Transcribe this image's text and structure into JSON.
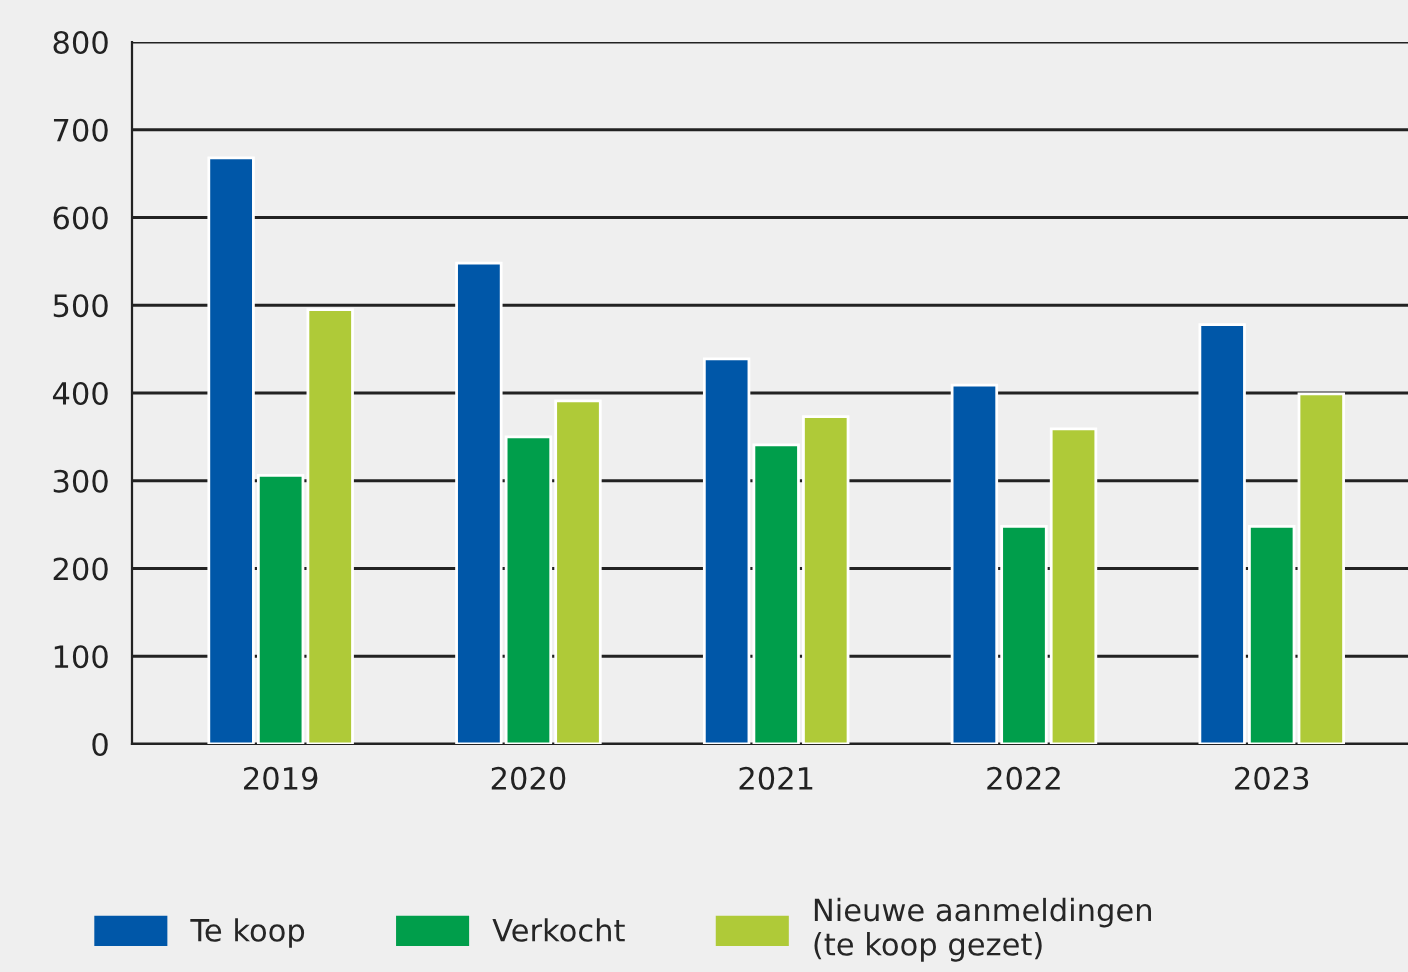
{
  "chart_data": {
    "type": "bar",
    "categories": [
      "2019",
      "2020",
      "2021",
      "2022",
      "2023"
    ],
    "series": [
      {
        "name": "Te koop",
        "color": "#0057a8",
        "values": [
          668,
          548,
          439,
          409,
          478
        ]
      },
      {
        "name": "Verkocht",
        "color": "#009e4b",
        "values": [
          306,
          350,
          341,
          248,
          248
        ]
      },
      {
        "name": "Nieuwe aanmeldingen\n(te koop gezet)",
        "color": "#afca38",
        "values": [
          495,
          391,
          373,
          359,
          399
        ]
      }
    ],
    "ylim": [
      0,
      800
    ],
    "yticks": [
      0,
      100,
      200,
      300,
      400,
      500,
      600,
      700,
      800
    ],
    "grid": "y",
    "legend": "bottom"
  }
}
